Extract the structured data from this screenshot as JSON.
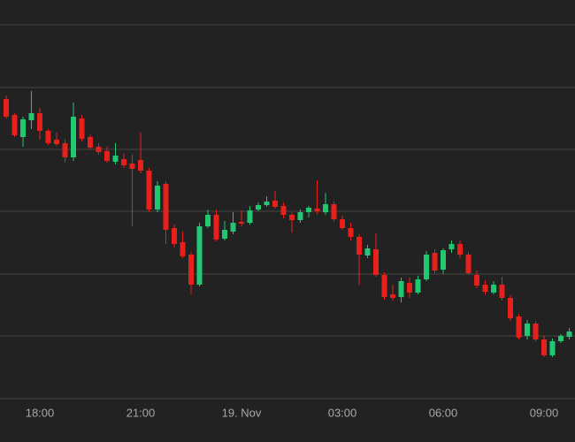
{
  "chart_data": {
    "type": "candlestick",
    "up_color": "#22c871",
    "down_color": "#e8201c",
    "grid": true,
    "ylim": [
      0,
      451
    ],
    "gridlines": [
      0,
      71,
      141,
      212,
      282,
      352,
      423
    ],
    "xlim": [
      -0.737,
      67.684
    ],
    "xticks": [
      {
        "value": 4,
        "label": "18:00"
      },
      {
        "value": 16,
        "label": "21:00"
      },
      {
        "value": 28,
        "label": "19. Nov"
      },
      {
        "value": 40,
        "label": "03:00"
      },
      {
        "value": 52,
        "label": "06:00"
      },
      {
        "value": 64,
        "label": "09:00"
      }
    ],
    "open": [
      339,
      321,
      296,
      315,
      323,
      303,
      293,
      289,
      273,
      317,
      296,
      285,
      280,
      268,
      271,
      266,
      270,
      258,
      214,
      243,
      193,
      177,
      163,
      129,
      195,
      208,
      181,
      189,
      200,
      199,
      214,
      219,
      224,
      218,
      208,
      202,
      211,
      215,
      211,
      220,
      203,
      193,
      183,
      162,
      169,
      140,
      118,
      115,
      131,
      120,
      135,
      165,
      146,
      169,
      175,
      163,
      140,
      129,
      120,
      129,
      114,
      93,
      71,
      85,
      67,
      49,
      65,
      70
    ],
    "high": [
      343,
      323,
      319,
      348,
      329,
      305,
      301,
      293,
      335,
      321,
      299,
      289,
      285,
      289,
      277,
      276,
      301,
      261,
      246,
      246,
      197,
      189,
      166,
      199,
      214,
      214,
      201,
      211,
      213,
      218,
      222,
      229,
      235,
      222,
      211,
      214,
      218,
      247,
      233,
      223,
      207,
      199,
      186,
      174,
      187,
      143,
      129,
      137,
      137,
      139,
      167,
      169,
      170,
      179,
      179,
      166,
      145,
      134,
      133,
      138,
      117,
      96,
      89,
      88,
      71,
      68,
      73,
      80
    ],
    "low": [
      317,
      296,
      285,
      305,
      293,
      287,
      286,
      267,
      269,
      291,
      282,
      276,
      267,
      265,
      261,
      195,
      255,
      211,
      211,
      175,
      171,
      159,
      118,
      127,
      193,
      178,
      179,
      186,
      195,
      197,
      212,
      217,
      215,
      204,
      188,
      199,
      205,
      209,
      208,
      201,
      191,
      179,
      129,
      159,
      138,
      112,
      111,
      109,
      114,
      118,
      133,
      142,
      141,
      165,
      159,
      140,
      125,
      118,
      118,
      111,
      88,
      67,
      67,
      65,
      47,
      47,
      63,
      67
    ],
    "close": [
      319,
      298,
      316,
      323,
      303,
      289,
      288,
      273,
      319,
      294,
      284,
      279,
      269,
      275,
      264,
      260,
      258,
      214,
      241,
      191,
      175,
      161,
      129,
      195,
      208,
      180,
      191,
      199,
      198,
      213,
      219,
      223,
      217,
      208,
      202,
      211,
      216,
      212,
      220,
      203,
      193,
      183,
      163,
      170,
      140,
      115,
      114,
      133,
      120,
      135,
      163,
      145,
      168,
      175,
      163,
      142,
      128,
      121,
      129,
      114,
      91,
      69,
      85,
      67,
      49,
      65,
      71,
      76
    ]
  }
}
